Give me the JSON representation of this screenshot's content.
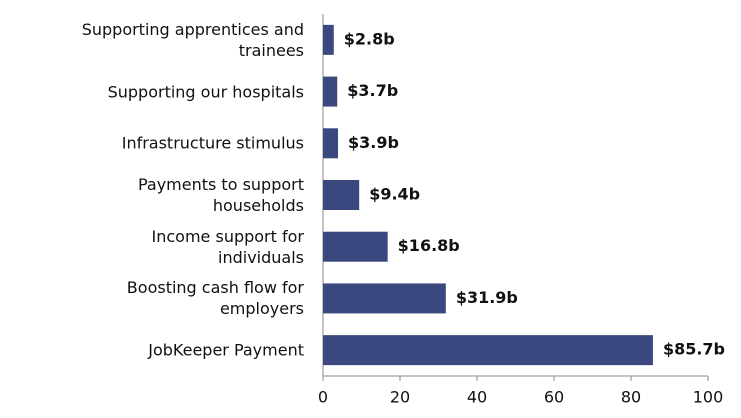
{
  "chart_data": {
    "type": "barh",
    "categories": [
      "Supporting apprentices and\ntrainees",
      "Supporting our hospitals",
      "Infrastructure stimulus",
      "Payments to support\nhouseholds",
      "Income support for\nindividuals",
      "Boosting cash flow for\nemployers",
      "JobKeeper Payment"
    ],
    "values": [
      2.8,
      3.7,
      3.9,
      9.4,
      16.8,
      31.9,
      85.7
    ],
    "value_labels": [
      "$2.8b",
      "$3.7b",
      "$3.9b",
      "$9.4b",
      "$16.8b",
      "$31.9b",
      "$85.7b"
    ],
    "color": "#3b4880",
    "xlim": [
      0,
      100
    ],
    "xticks": [
      0,
      20,
      40,
      60,
      80,
      100
    ],
    "grid": false
  }
}
